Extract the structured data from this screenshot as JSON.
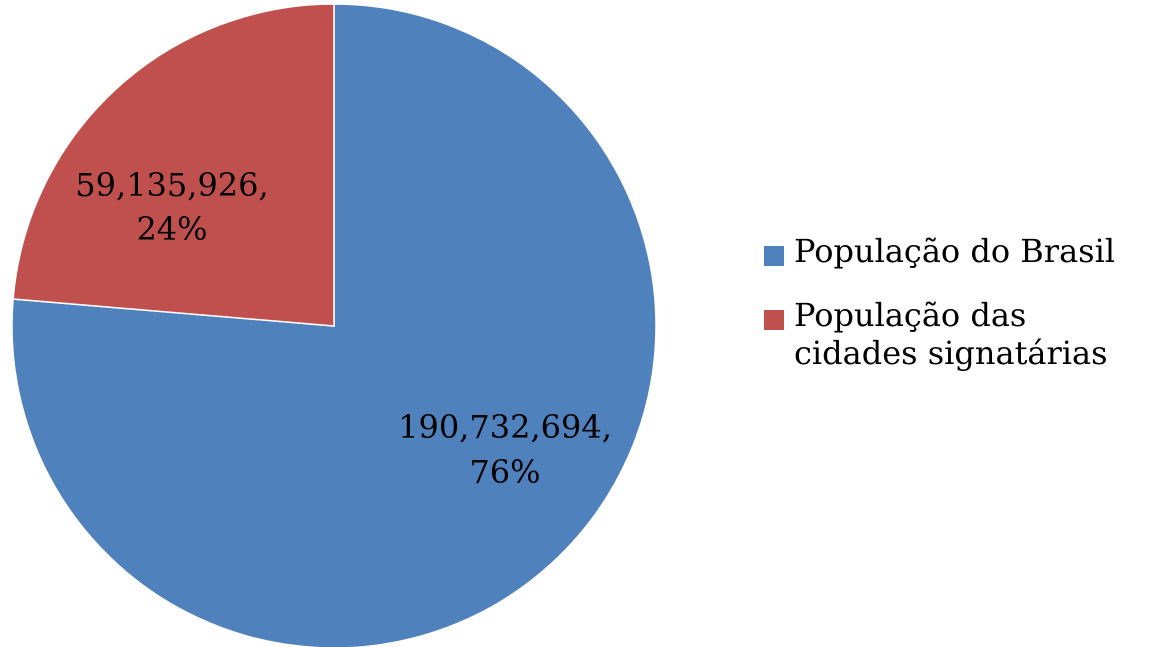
{
  "chart_data": {
    "type": "pie",
    "categories": [
      "População do Brasil",
      "População das cidades signatárias"
    ],
    "values": [
      190732694,
      59135926
    ],
    "percentages": [
      76,
      24
    ],
    "colors": [
      "#4F81BD",
      "#C0504D"
    ],
    "legend_position": "right",
    "data_labels": [
      {
        "value": "190,732,694,",
        "percent": "76%"
      },
      {
        "value": "59,135,926,",
        "percent": "24%"
      }
    ]
  }
}
